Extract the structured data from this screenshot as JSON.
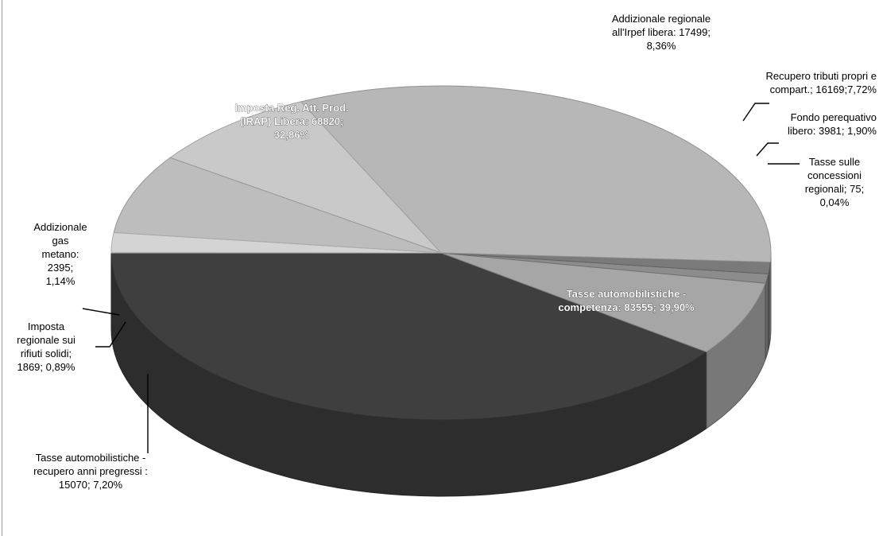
{
  "chart_data": {
    "type": "pie",
    "style": "3d-pie",
    "title": "",
    "slices": [
      {
        "label": "Tasse automobilistiche - competenza",
        "value": 83555,
        "percent": "39,90%",
        "text": "Tasse automobilistiche - competenza: 83555; 39,90%",
        "color": "#3f3f3f"
      },
      {
        "label": "Tasse automobilistiche - recupero anni pregressi",
        "value": 15070,
        "percent": "7,20%",
        "text": "Tasse automobilistiche - recupero anni pregressi : 15070; 7,20%",
        "color": "#a6a6a6"
      },
      {
        "label": "Imposta regionale sui rifiuti solidi",
        "value": 1869,
        "percent": "0,89%",
        "text": "Imposta regionale sui rifiuti solidi; 1869; 0,89%",
        "color": "#8c8c8c"
      },
      {
        "label": "Addizionale gas metano",
        "value": 2395,
        "percent": "1,14%",
        "text": "Addizionale gas metano: 2395; 1,14%",
        "color": "#7a7a7a"
      },
      {
        "label": "Imposta Reg. Att. Prod. (IRAP) Libera",
        "value": 68820,
        "percent": "32,86%",
        "text": "Imposta Reg. Att. Prod. (IRAP) Libera: 68820; 32,86%",
        "color": "#b7b7b7"
      },
      {
        "label": "Addizionale regionale all'Irpef libera",
        "value": 17499,
        "percent": "8,36%",
        "text": "Addizionale regionale all'Irpef libera: 17499; 8,36%",
        "color": "#c9c9c9"
      },
      {
        "label": "Recupero tributi propri e compart.",
        "value": 16169,
        "percent": "7,72%",
        "text": "Recupero tributi propri e compart.; 16169;7,72%",
        "color": "#bdbdbd"
      },
      {
        "label": "Fondo perequativo libero",
        "value": 3981,
        "percent": "1,90%",
        "text": "Fondo perequativo libero: 3981; 1,90%",
        "color": "#d4d4d4"
      },
      {
        "label": "Tasse sulle concessioni regionali",
        "value": 75,
        "percent": "0,04%",
        "text": "Tasse sulle concessioni regionali; 75; 0,04%",
        "color": "#e0e0e0"
      }
    ]
  }
}
